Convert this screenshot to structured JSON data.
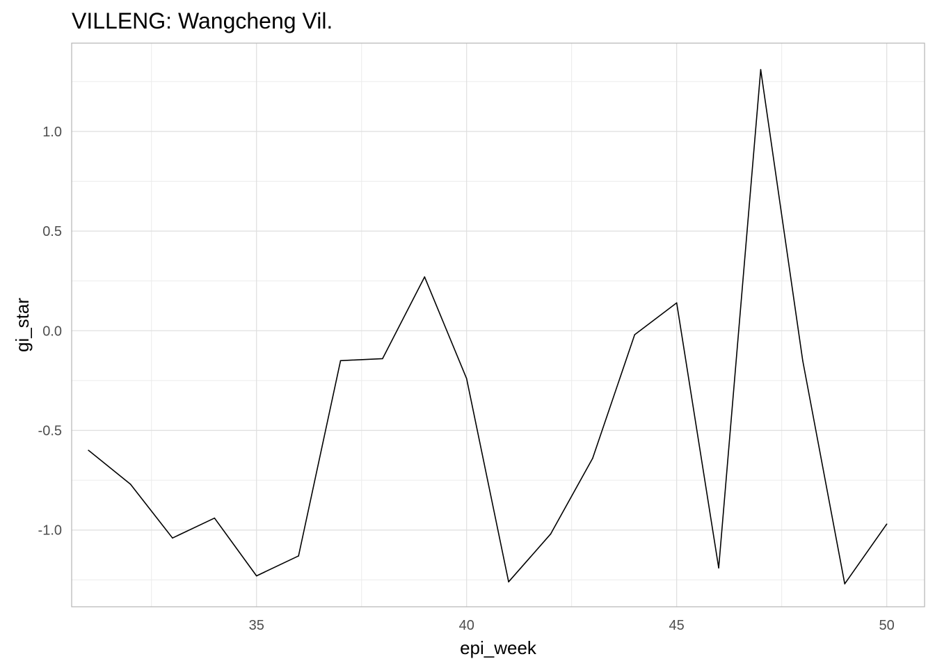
{
  "chart_data": {
    "type": "line",
    "title": "VILLENG: Wangcheng Vil.",
    "xlabel": "epi_week",
    "ylabel": "gi_star",
    "x": [
      31,
      32,
      33,
      34,
      35,
      36,
      37,
      38,
      39,
      40,
      41,
      42,
      43,
      44,
      45,
      46,
      47,
      48,
      49,
      50
    ],
    "series": [
      {
        "values": [
          -0.6,
          -0.77,
          -1.04,
          -0.94,
          -1.23,
          -1.13,
          -0.15,
          -0.14,
          0.27,
          -0.24,
          -1.26,
          -1.02,
          -0.64,
          -0.02,
          0.14,
          -1.19,
          1.31,
          -0.15,
          -1.27,
          -0.97
        ]
      }
    ],
    "xlim": [
      30.6,
      50.9
    ],
    "ylim": [
      -1.385,
      1.443
    ],
    "xticks": [
      "35",
      "40",
      "45",
      "50"
    ],
    "yticks": [
      "-1.0",
      "-0.5",
      "0.0",
      "0.5",
      "1.0"
    ],
    "grid": true,
    "line_color": "#000000"
  }
}
